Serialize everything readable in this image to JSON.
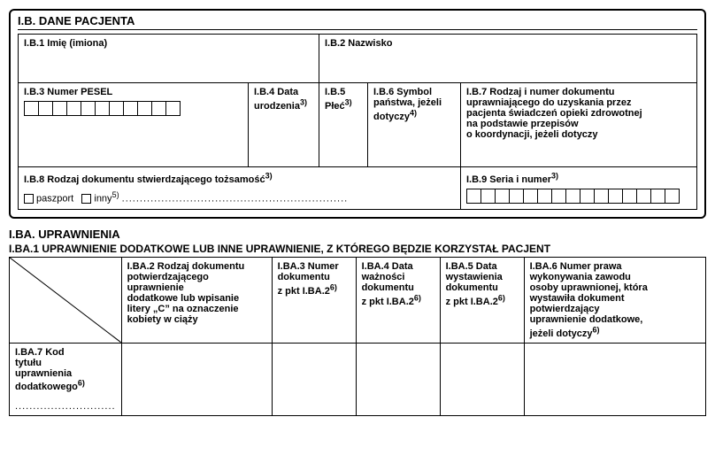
{
  "colors": {
    "border": "#000000",
    "text": "#000000",
    "bg": "#ffffff"
  },
  "ib": {
    "heading": "I.B. DANE PACJENTA",
    "b1": "I.B.1 Imię (imiona)",
    "b2": "I.B.2 Nazwisko",
    "b3": "I.B.3 Numer PESEL",
    "b3_cells": 11,
    "b4_label": "I.B.4 Data",
    "b4_line2_pre": "urodzenia",
    "b4_sup": "3)",
    "b5_label": "I.B.5",
    "b5_line2_pre": "Płeć",
    "b5_sup": "3)",
    "b6_label": "I.B.6 Symbol",
    "b6_line2": "państwa, jeżeli",
    "b6_line3_pre": "dotyczy",
    "b6_sup": "4)",
    "b7_l1": "I.B.7 Rodzaj i numer dokumentu",
    "b7_l2": "uprawniającego do uzyskania przez",
    "b7_l3": "pacjenta świadczeń opieki zdrowotnej",
    "b7_l4": "na podstawie przepisów",
    "b7_l5": "o koordynacji, jeżeli dotyczy",
    "b8_pre": "I.B.8 Rodzaj dokumentu stwierdzającego tożsamość",
    "b8_sup": "3)",
    "b8_opt1": "paszport",
    "b8_opt2_pre": "inny",
    "b8_opt2_sup": "5)",
    "b8_dots": "...............................................................",
    "b9_pre": "I.B.9 Seria i numer",
    "b9_sup": "3)",
    "b9_cells": 15
  },
  "iba": {
    "heading": "I.BA. UPRAWNIENIA",
    "subheading": "I.BA.1 UPRAWNIENIE DODATKOWE LUB INNE UPRAWNIENIE, Z KTÓREGO BĘDZIE KORZYSTAŁ PACJENT",
    "ba2_l1": "I.BA.2 Rodzaj dokumentu",
    "ba2_l2": "potwierdzającego uprawnienie",
    "ba2_l3": "dodatkowe lub wpisanie",
    "ba2_l4": "litery „C” na oznaczenie",
    "ba2_l5": "kobiety w ciąży",
    "ba3_l1": "I.BA.3 Numer",
    "ba3_l2": "dokumentu",
    "ba3_l3_pre": "z pkt I.BA.2",
    "ba3_sup": "6)",
    "ba4_l1": "I.BA.4 Data",
    "ba4_l2": "ważności",
    "ba4_l3": "dokumentu",
    "ba4_l4_pre": "z pkt I.BA.2",
    "ba4_sup": "6)",
    "ba5_l1": "I.BA.5 Data",
    "ba5_l2": "wystawienia",
    "ba5_l3": "dokumentu",
    "ba5_l4_pre": "z pkt I.BA.2",
    "ba5_sup": "6)",
    "ba6_l1": "I.BA.6 Numer prawa",
    "ba6_l2": "wykonywania zawodu",
    "ba6_l3": "osoby uprawnionej, która",
    "ba6_l4": "wystawiła dokument",
    "ba6_l5": "potwierdzający",
    "ba6_l6": "uprawnienie dodatkowe,",
    "ba6_l7_pre": "jeżeli dotyczy",
    "ba6_sup": "6)",
    "ba7_l1": "I.BA.7 Kod",
    "ba7_l2": "tytułu",
    "ba7_l3": "uprawnienia",
    "ba7_l4_pre": "dodatkowego",
    "ba7_sup": "6)",
    "ba7_dots": "............................"
  }
}
